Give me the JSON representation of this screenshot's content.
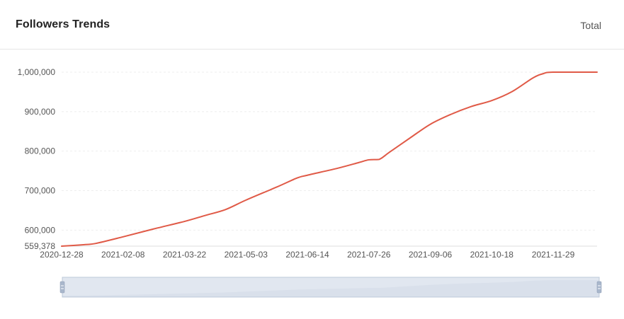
{
  "header": {
    "title": "Followers Trends",
    "range_label": "Total"
  },
  "colors": {
    "line": "#e05a47",
    "grid": "#eeeeee",
    "zoom_fill": "#dbe2ec",
    "zoom_border": "#bcc8d8",
    "zoom_area": "#c9d3e0",
    "zoom_handle": "#a9b7cc"
  },
  "chart_data": {
    "type": "line",
    "title": "Followers Trends",
    "xlabel": "",
    "ylabel": "",
    "ylim": [
      559378,
      1000000
    ],
    "xlim": [
      "2020-12-28",
      "2021-12-29"
    ],
    "y_ticks": [
      {
        "value": 1000000,
        "label": "1,000,000"
      },
      {
        "value": 900000,
        "label": "900,000"
      },
      {
        "value": 800000,
        "label": "800,000"
      },
      {
        "value": 700000,
        "label": "700,000"
      },
      {
        "value": 600000,
        "label": "600,000"
      },
      {
        "value": 559378,
        "label": "559,378"
      }
    ],
    "x_ticks": [
      "2020-12-28",
      "2021-02-08",
      "2021-03-22",
      "2021-05-03",
      "2021-06-14",
      "2021-07-26",
      "2021-09-06",
      "2021-10-18",
      "2021-11-29"
    ],
    "grid": true,
    "series": [
      {
        "points": [
          [
            "2020-12-28",
            559378
          ],
          [
            "2021-01-12",
            563000
          ],
          [
            "2021-01-20",
            566000
          ],
          [
            "2021-02-08",
            583000
          ],
          [
            "2021-03-01",
            603000
          ],
          [
            "2021-03-22",
            622000
          ],
          [
            "2021-04-05",
            637000
          ],
          [
            "2021-04-19",
            652000
          ],
          [
            "2021-05-03",
            676000
          ],
          [
            "2021-05-24",
            709000
          ],
          [
            "2021-06-07",
            732000
          ],
          [
            "2021-06-14",
            739000
          ],
          [
            "2021-07-05",
            757000
          ],
          [
            "2021-07-19",
            771000
          ],
          [
            "2021-07-26",
            778000
          ],
          [
            "2021-08-02",
            779000
          ],
          [
            "2021-08-09",
            797000
          ],
          [
            "2021-08-23",
            833000
          ],
          [
            "2021-09-06",
            868000
          ],
          [
            "2021-09-20",
            893000
          ],
          [
            "2021-10-04",
            913000
          ],
          [
            "2021-10-18",
            928000
          ],
          [
            "2021-11-01",
            951000
          ],
          [
            "2021-11-15",
            985000
          ],
          [
            "2021-11-22",
            996000
          ],
          [
            "2021-11-29",
            1000000
          ],
          [
            "2021-12-29",
            1000000
          ]
        ]
      }
    ],
    "zoom_slider": {
      "start_percent": 0,
      "end_percent": 100
    }
  }
}
